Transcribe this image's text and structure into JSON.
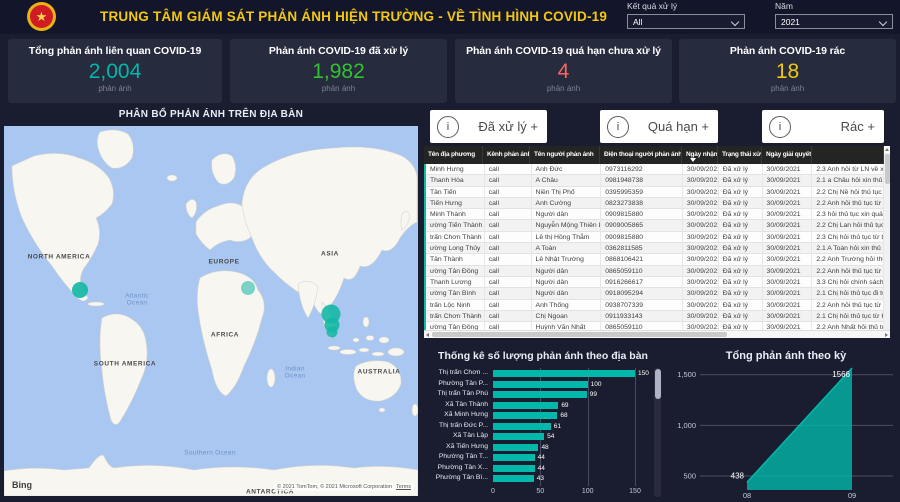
{
  "header": {
    "title": "TRUNG TÂM GIÁM SÁT PHẢN ÁNH HIỆN TRƯỜNG - VỀ TÌNH HÌNH COVID-19",
    "slicers": [
      {
        "label": "Kết quả xử lý",
        "value": "All"
      },
      {
        "label": "Năm",
        "value": "2021"
      }
    ]
  },
  "icons": {
    "info": "i",
    "star": "★"
  },
  "kpis": [
    {
      "title": "Tổng phản ánh liên quan COVID-19",
      "value": "2,004",
      "unit": "phản ánh",
      "color": "#01b8aa"
    },
    {
      "title": "Phản ánh COVID-19 đã xử lý",
      "value": "1,982",
      "unit": "phản ánh",
      "color": "#35c132"
    },
    {
      "title": "Phản ánh COVID-19 quá hạn chưa xử lý",
      "value": "4",
      "unit": "phản ánh",
      "color": "#fd625e"
    },
    {
      "title": "Phản ánh COVID-19 rác",
      "value": "18",
      "unit": "phản ánh",
      "color": "#f2c80f"
    }
  ],
  "buttons": [
    {
      "label": "Đã xử lý +"
    },
    {
      "label": "Quá hạn +"
    },
    {
      "label": "Rác +"
    }
  ],
  "map": {
    "title": "PHÂN BỔ PHẢN ÁNH TRÊN ĐỊA BÀN",
    "labels": {
      "north_america": "NORTH AMERICA",
      "south_america": "SOUTH AMERICA",
      "europe": "EUROPE",
      "africa": "AFRICA",
      "asia": "ASIA",
      "australia": "AUSTRALIA",
      "antarctica": "ANTARCTICA",
      "atlantic": "Atlantic Ocean",
      "indian": "Indian Ocean",
      "southern": "Southern Ocean"
    },
    "logo": "Bing",
    "attribution": "© 2021 TomTom, © 2021 Microsoft Corporation",
    "terms": "Terms"
  },
  "table": {
    "columns": [
      "Tên địa phương",
      "Kênh phản ánh",
      "Tên người phản ánh",
      "Điện thoại người phản ánh",
      "Ngày nhận",
      "Trạng thái xử lý",
      "Ngày giải quyết",
      ""
    ],
    "sort_column": "Ngày nhận",
    "rows": [
      [
        "Minh Hưng",
        "call",
        "Anh Đức",
        "0973116292",
        "30/09/2021",
        "Đã xử lý",
        "30/09/2021",
        "2.3 Anh hỏi từ LN về x. Min"
      ],
      [
        "Thanh Hòa",
        "call",
        "A Châu",
        "0981948738",
        "30/09/2021",
        "Đã xử lý",
        "30/09/2021",
        "2.1 a Châu hỏi xin thủ tục n"
      ],
      [
        "Tân Tiến",
        "call",
        "Niền Thị Phố",
        "0395995359",
        "30/09/2021",
        "Đã xử lý",
        "30/09/2021",
        "2.2 Chị Nề hỏi thủ tục về B"
      ],
      [
        "Tiến Hưng",
        "call",
        "Anh Cường",
        "0823273838",
        "30/09/2021",
        "Đã xử lý",
        "30/09/2021",
        "2.2 Anh hỏi thủ tục từ t. Bìn"
      ],
      [
        "Minh Thành",
        "call",
        "Người dân",
        "0909815880",
        "30/09/2021",
        "Đã xử lý",
        "30/09/2021",
        "2.3 hỏi thủ tục xin quá cảnh"
      ],
      [
        "ường Tiến Thành",
        "call",
        "Nguyễn Mộng Thiên Lan",
        "0909005865",
        "30/09/2021",
        "Đã xử lý",
        "30/09/2021",
        "2.2 Chị Lan hỏi thủ tục về B"
      ],
      [
        "trấn Chơn Thành",
        "call",
        "Lê thị Hồng Thắm",
        "0909815880",
        "30/09/2021",
        "Đã xử lý",
        "30/09/2021",
        "2.3 Chị hỏi thủ tục từ tỉnh T"
      ],
      [
        "ường Long Thủy",
        "call",
        "A Toàn",
        "0362811585",
        "30/09/2021",
        "Đã xử lý",
        "30/09/2021",
        "2.1 A Toàn hỏi xin thủ tục n"
      ],
      [
        "Tân Thành",
        "call",
        "Lê Nhật Trường",
        "0868106421",
        "30/09/2021",
        "Đã xử lý",
        "30/09/2021",
        "2.2 Anh Trường hỏi thủ tục"
      ],
      [
        "ường Tân Đồng",
        "call",
        "Người dân",
        "0865059110",
        "30/09/2021",
        "Đã xử lý",
        "30/09/2021",
        "2.2 Anh hỏi thủ tục từ HCM"
      ],
      [
        "Thanh Lương",
        "call",
        "Người dân",
        "0916266617",
        "30/09/2021",
        "Đã xử lý",
        "30/09/2021",
        "3.3 Chị hỏi chính sách cho"
      ],
      [
        "ường Tân Bình",
        "call",
        "Người dân",
        "0918095294",
        "30/09/2021",
        "Đã xử lý",
        "30/09/2021",
        "2.1 Chị hỏi thủ tục đi từ ĐX"
      ],
      [
        "trấn Lộc Ninh",
        "call",
        "Anh Thống",
        "0938707339",
        "30/09/2021",
        "Đã xử lý",
        "30/09/2021",
        "2.2 Anh hỏi thủ tục từ HCM"
      ],
      [
        "trấn Chơn Thành",
        "call",
        "Chị Ngoan",
        "0911933143",
        "30/09/2021",
        "Đã xử lý",
        "30/09/2021",
        "2.1 Chị hỏi thủ tục từ H. Ch"
      ],
      [
        "ường Tân Đồng",
        "call",
        "Huỳnh Văn Nhất",
        "0865059110",
        "30/09/2021",
        "Đã xử lý",
        "30/09/2021",
        "2.2 Anh Nhất hỏi thủ tục về"
      ]
    ]
  },
  "chart_data": [
    {
      "type": "bar",
      "orientation": "horizontal",
      "title": "Thống kê số lượng phản ánh theo địa bàn",
      "categories": [
        "Thị trấn Chơn ...",
        "Phường Tân P...",
        "Thị trấn Tân Phú",
        "Xã Tân Thành",
        "Xã Minh Hưng",
        "Thị trấn Đức P...",
        "Xã Tân Lập",
        "Xã Tiến Hưng",
        "Phường Tân T...",
        "Phường Tân X...",
        "Phường Tân Bì..."
      ],
      "values": [
        150,
        100,
        99,
        69,
        68,
        61,
        54,
        48,
        44,
        44,
        43
      ],
      "xticks": [
        0,
        50,
        100,
        150
      ],
      "xlim": [
        0,
        150
      ],
      "bar_color": "#01b8aa",
      "grid": true,
      "legend": false
    },
    {
      "type": "area",
      "title": "Tổng phản ánh theo kỳ",
      "x": [
        "08",
        "09"
      ],
      "values": [
        438,
        1566
      ],
      "point_labels": [
        "438",
        "1566"
      ],
      "yticks": [
        "500",
        "1,000",
        "1,500"
      ],
      "ytick_values": [
        500,
        1000,
        1500
      ],
      "area_color": "#01b8aa",
      "grid": true,
      "legend": false
    }
  ]
}
